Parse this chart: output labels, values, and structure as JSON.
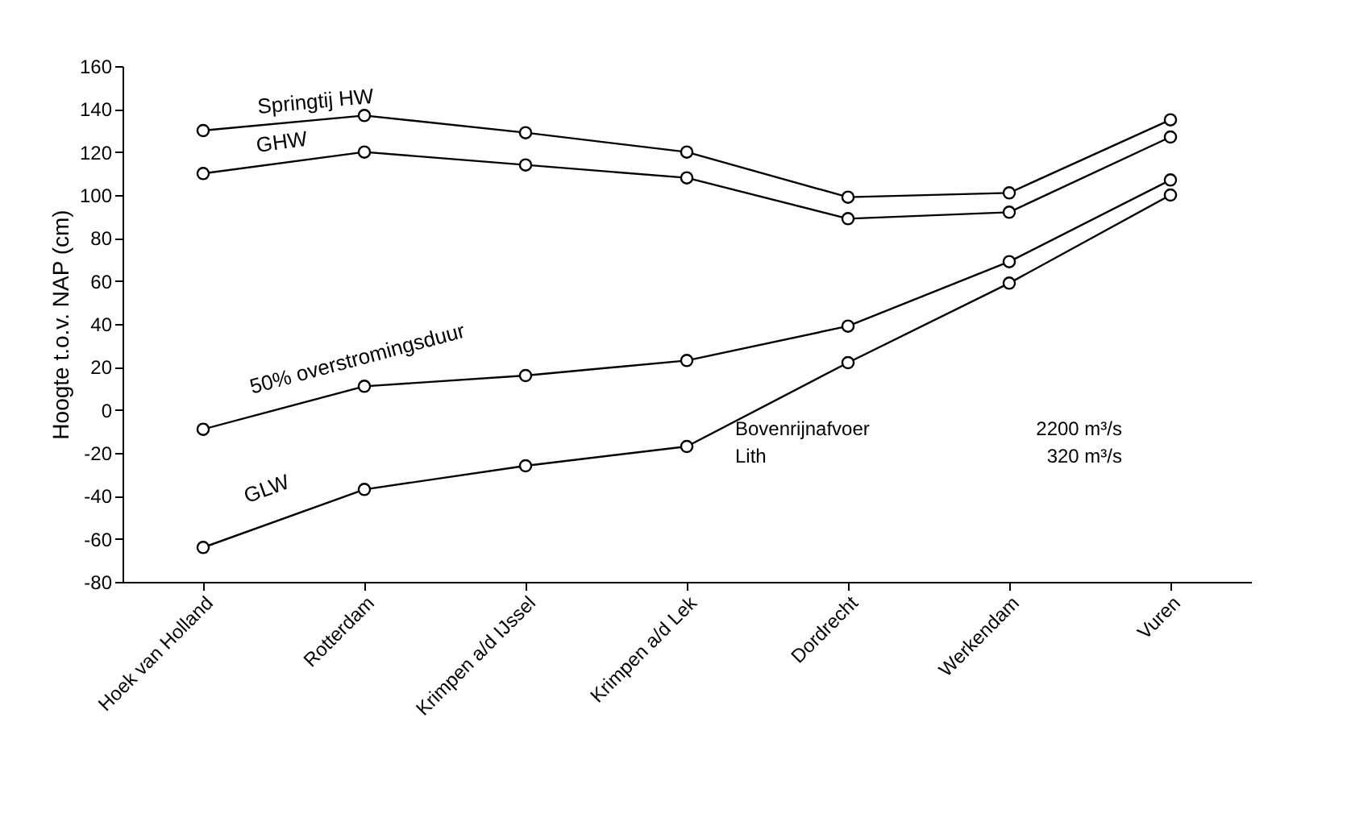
{
  "chart_data": {
    "type": "line",
    "ylabel": "Hoogte t.o.v. NAP (cm)",
    "categories": [
      "Hoek van Holland",
      "Rotterdam",
      "Krimpen a/d IJssel",
      "Krimpen a/d Lek",
      "Dordrecht",
      "Werkendam",
      "Vuren"
    ],
    "series": [
      {
        "name": "Springtij HW",
        "color": "#000000",
        "values": [
          130,
          137,
          129,
          120,
          99,
          101,
          135
        ]
      },
      {
        "name": "GHW",
        "color": "#000000",
        "values": [
          110,
          120,
          114,
          108,
          89,
          92,
          127
        ]
      },
      {
        "name": "50% overstromingsduur",
        "color": "#000000",
        "values": [
          -9,
          11,
          16,
          23,
          39,
          69,
          107
        ]
      },
      {
        "name": "GLW",
        "color": "#000000",
        "values": [
          -64,
          -37,
          -26,
          -17,
          22,
          59,
          100
        ]
      }
    ],
    "ylim": [
      -80,
      160
    ],
    "yticks": [
      -80,
      -60,
      -40,
      -20,
      0,
      20,
      40,
      60,
      80,
      100,
      120,
      140,
      160
    ],
    "annotations": [
      "Bovenrijnafvoer   2200 m³/s",
      "Lith   320 m³/s"
    ],
    "marker": "circle",
    "line_style": "solid",
    "grid": false,
    "legend": false
  }
}
